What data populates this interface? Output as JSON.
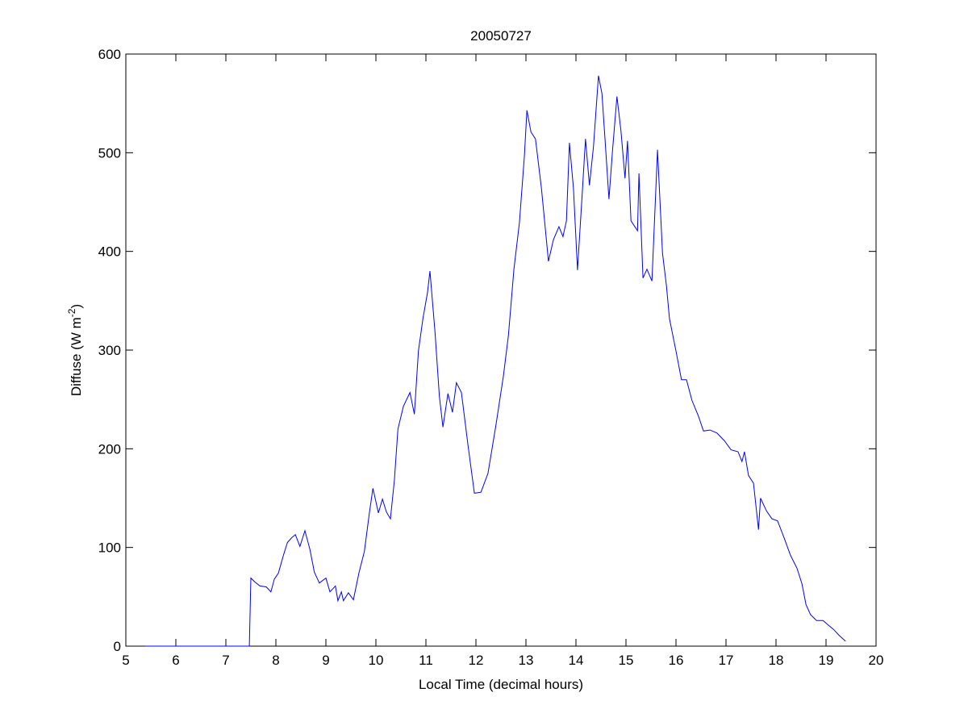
{
  "chart_data": {
    "type": "line",
    "title": "20050727",
    "xlabel": "Local Time (decimal hours)",
    "ylabel": "Diffuse (W m",
    "ylabel_superscript": "-2",
    "ylabel_suffix": ")",
    "xlim": [
      5,
      20
    ],
    "ylim": [
      0,
      600
    ],
    "xticks": [
      5,
      6,
      7,
      8,
      9,
      10,
      11,
      12,
      13,
      14,
      15,
      16,
      17,
      18,
      19,
      20
    ],
    "yticks": [
      0,
      100,
      200,
      300,
      400,
      500,
      600
    ],
    "grid": false,
    "line_color": "#0000ff",
    "series": [
      {
        "x": [
          5.39,
          7.47,
          7.5,
          7.58,
          7.68,
          7.81,
          7.9,
          7.97,
          8.05,
          8.15,
          8.23,
          8.32,
          8.39,
          8.48,
          8.58,
          8.68,
          8.77,
          8.87,
          9.0,
          9.08,
          9.19,
          9.24,
          9.31,
          9.35,
          9.45,
          9.55,
          9.66,
          9.77,
          9.87,
          9.94,
          10.05,
          10.13,
          10.21,
          10.29,
          10.37,
          10.44,
          10.55,
          10.68,
          10.77,
          10.85,
          10.94,
          11.03,
          11.08,
          11.18,
          11.27,
          11.34,
          11.44,
          11.53,
          11.61,
          11.71,
          11.84,
          11.97,
          12.1,
          12.24,
          12.4,
          12.55,
          12.65,
          12.76,
          12.87,
          12.97,
          13.02,
          13.1,
          13.19,
          13.31,
          13.45,
          13.55,
          13.66,
          13.74,
          13.81,
          13.87,
          13.95,
          14.03,
          14.13,
          14.19,
          14.27,
          14.35,
          14.45,
          14.52,
          14.58,
          14.66,
          14.73,
          14.82,
          14.9,
          14.98,
          15.03,
          15.1,
          15.23,
          15.26,
          15.34,
          15.42,
          15.52,
          15.63,
          15.73,
          15.81,
          15.87,
          16.0,
          16.11,
          16.21,
          16.32,
          16.45,
          16.55,
          16.68,
          16.82,
          16.97,
          17.1,
          17.24,
          17.32,
          17.37,
          17.45,
          17.55,
          17.65,
          17.69,
          17.81,
          17.92,
          18.03,
          18.16,
          18.29,
          18.42,
          18.52,
          18.6,
          18.69,
          18.81,
          18.94,
          19.03,
          19.15,
          19.26,
          19.39
        ],
        "y": [
          0,
          0,
          69,
          65,
          61,
          60,
          55,
          68,
          74,
          92,
          105,
          110,
          113,
          101,
          117,
          98,
          75,
          64,
          69,
          55,
          61,
          46,
          55,
          46,
          54,
          47,
          74,
          96,
          135,
          160,
          135,
          149,
          136,
          129,
          168,
          220,
          243,
          257,
          235,
          299,
          332,
          358,
          380,
          319,
          253,
          222,
          256,
          237,
          267,
          257,
          204,
          155,
          156,
          175,
          224,
          274,
          315,
          382,
          429,
          497,
          543,
          521,
          514,
          464,
          390,
          412,
          425,
          415,
          431,
          510,
          464,
          381,
          463,
          514,
          467,
          506,
          578,
          560,
          514,
          453,
          502,
          557,
          522,
          474,
          512,
          431,
          421,
          479,
          373,
          382,
          370,
          503,
          398,
          365,
          332,
          299,
          270,
          270,
          249,
          233,
          218,
          219,
          216,
          208,
          199,
          197,
          187,
          197,
          173,
          165,
          118,
          150,
          137,
          129,
          127,
          110,
          92,
          79,
          63,
          42,
          32,
          26,
          26,
          22,
          17,
          11,
          5
        ]
      }
    ]
  }
}
